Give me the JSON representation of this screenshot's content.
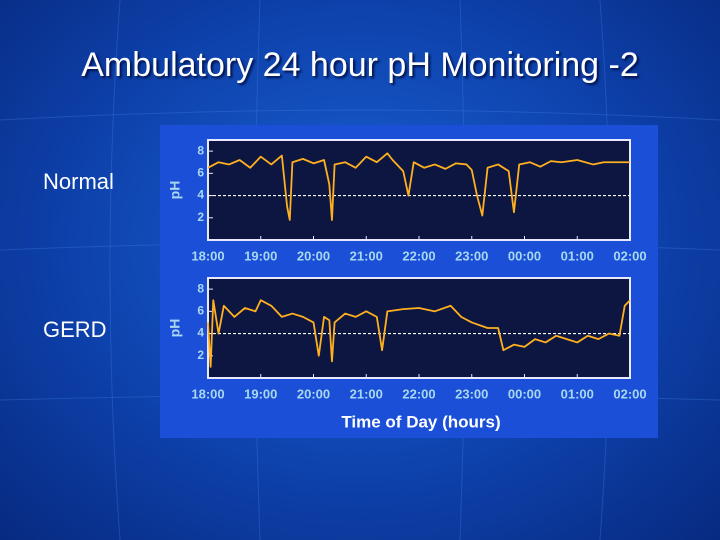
{
  "title": "Ambulatory 24 hour pH Monitoring -2",
  "chart_data": [
    {
      "type": "line",
      "title": "Normal",
      "ylabel": "pH",
      "ylim": [
        0,
        9
      ],
      "yticks": [
        2,
        4,
        6,
        8
      ],
      "xlim": [
        18,
        26
      ],
      "threshold": 4,
      "xticks": [
        {
          "value": 18,
          "label": "18:00"
        },
        {
          "value": 19,
          "label": "19:00"
        },
        {
          "value": 20,
          "label": "20:00"
        },
        {
          "value": 21,
          "label": "21:00"
        },
        {
          "value": 22,
          "label": "22:00"
        },
        {
          "value": 23,
          "label": "23:00"
        },
        {
          "value": 24,
          "label": "00:00"
        },
        {
          "value": 25,
          "label": "01:00"
        },
        {
          "value": 26,
          "label": "02:00"
        }
      ],
      "x": [
        18.0,
        18.2,
        18.4,
        18.6,
        18.8,
        19.0,
        19.2,
        19.4,
        19.5,
        19.55,
        19.6,
        19.8,
        20.0,
        20.2,
        20.3,
        20.35,
        20.4,
        20.6,
        20.8,
        21.0,
        21.2,
        21.4,
        21.5,
        21.7,
        21.8,
        21.9,
        22.1,
        22.3,
        22.5,
        22.7,
        22.9,
        23.0,
        23.1,
        23.2,
        23.3,
        23.5,
        23.7,
        23.8,
        23.9,
        24.1,
        24.3,
        24.5,
        24.7,
        25.0,
        25.3,
        25.5,
        25.8,
        26.0
      ],
      "series": [
        {
          "color": "#ffb020",
          "values": [
            6.5,
            7,
            6.8,
            7.2,
            6.5,
            7.5,
            6.8,
            7.6,
            3,
            1.8,
            7,
            7.3,
            6.9,
            7.2,
            5,
            1.8,
            6.8,
            7,
            6.5,
            7.5,
            7.0,
            7.8,
            7.2,
            6.2,
            4,
            7,
            6.5,
            6.8,
            6.4,
            6.9,
            6.8,
            6.3,
            4,
            2.2,
            6.5,
            6.8,
            6.2,
            2.5,
            6.8,
            7,
            6.6,
            7.1,
            7,
            7.2,
            6.8,
            7,
            7,
            7
          ]
        }
      ]
    },
    {
      "type": "line",
      "title": "GERD",
      "ylabel": "pH",
      "ylim": [
        0,
        9
      ],
      "yticks": [
        2,
        4,
        6,
        8
      ],
      "xlim": [
        18,
        26
      ],
      "threshold": 4,
      "xlabel": "Time of Day (hours)",
      "xticks": [
        {
          "value": 18,
          "label": "18:00"
        },
        {
          "value": 19,
          "label": "19:00"
        },
        {
          "value": 20,
          "label": "20:00"
        },
        {
          "value": 21,
          "label": "21:00"
        },
        {
          "value": 22,
          "label": "22:00"
        },
        {
          "value": 23,
          "label": "23:00"
        },
        {
          "value": 24,
          "label": "00:00"
        },
        {
          "value": 25,
          "label": "01:00"
        },
        {
          "value": 26,
          "label": "02:00"
        }
      ],
      "x": [
        18.0,
        18.05,
        18.1,
        18.2,
        18.3,
        18.5,
        18.7,
        18.9,
        19.0,
        19.2,
        19.4,
        19.6,
        19.8,
        20.0,
        20.1,
        20.2,
        20.3,
        20.35,
        20.4,
        20.6,
        20.8,
        21.0,
        21.2,
        21.3,
        21.4,
        21.7,
        22.0,
        22.3,
        22.6,
        22.8,
        23.0,
        23.3,
        23.5,
        23.6,
        23.8,
        24.0,
        24.2,
        24.4,
        24.6,
        24.8,
        25.0,
        25.2,
        25.4,
        25.6,
        25.8,
        25.9,
        26.0
      ],
      "series": [
        {
          "color": "#ffb020",
          "values": [
            5,
            1,
            7,
            4,
            6.5,
            5.5,
            6.3,
            6,
            7,
            6.5,
            5.5,
            5.8,
            5.5,
            5,
            2,
            5.5,
            5.2,
            1.5,
            5,
            5.8,
            5.5,
            6,
            5.5,
            2.5,
            6,
            6.2,
            6.3,
            6,
            6.5,
            5.5,
            5,
            4.5,
            4.5,
            2.5,
            3,
            2.8,
            3.5,
            3.2,
            3.8,
            3.5,
            3.2,
            3.8,
            3.5,
            4,
            3.8,
            6.5,
            7
          ]
        }
      ]
    }
  ]
}
